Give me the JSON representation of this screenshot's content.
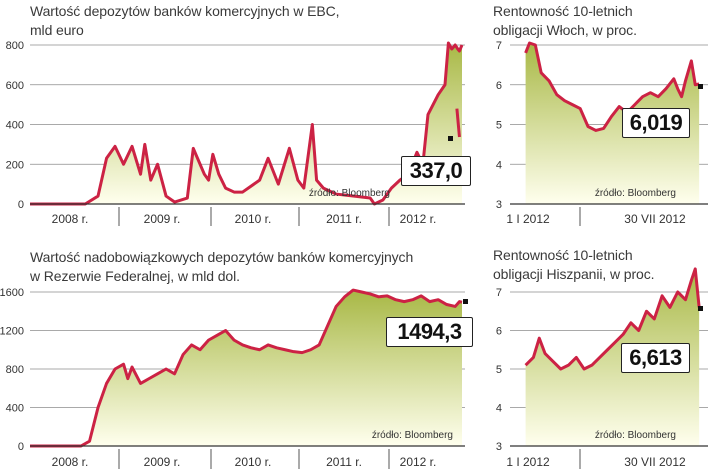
{
  "colors": {
    "line": "#cc2244",
    "fill_top": "#a8b845",
    "fill_bottom": "#ffffee",
    "grid": "#8c8c8c",
    "divider": "#555555"
  },
  "chart_data": [
    {
      "type": "area",
      "title": "Wartość depozytów banków komercyjnych w EBC, mld euro",
      "title_lines": [
        "Wartość depozytów banków komercyjnych w EBC,",
        "mld euro"
      ],
      "ylim": [
        0,
        800
      ],
      "yticks": [
        0,
        200,
        400,
        600,
        800
      ],
      "xticks": [
        "2008 r.",
        "2009 r.",
        "2010 r.",
        "2011 r.",
        "2012 r."
      ],
      "x_range": [
        2007.5,
        2012.58
      ],
      "source": "źródło: Bloomberg",
      "callout": "337,0",
      "series": [
        {
          "points": [
            [
              2007.5,
              0
            ],
            [
              2008.15,
              0
            ],
            [
              2008.3,
              40
            ],
            [
              2008.4,
              230
            ],
            [
              2008.5,
              290
            ],
            [
              2008.6,
              200
            ],
            [
              2008.7,
              290
            ],
            [
              2008.8,
              150
            ],
            [
              2008.85,
              300
            ],
            [
              2008.92,
              120
            ],
            [
              2009.0,
              200
            ],
            [
              2009.1,
              40
            ],
            [
              2009.2,
              10
            ],
            [
              2009.35,
              30
            ],
            [
              2009.42,
              280
            ],
            [
              2009.55,
              150
            ],
            [
              2009.6,
              120
            ],
            [
              2009.65,
              250
            ],
            [
              2009.72,
              150
            ],
            [
              2009.8,
              80
            ],
            [
              2009.9,
              60
            ],
            [
              2010.0,
              60
            ],
            [
              2010.2,
              120
            ],
            [
              2010.3,
              230
            ],
            [
              2010.42,
              100
            ],
            [
              2010.55,
              280
            ],
            [
              2010.65,
              120
            ],
            [
              2010.72,
              80
            ],
            [
              2010.82,
              400
            ],
            [
              2010.87,
              120
            ],
            [
              2010.95,
              80
            ],
            [
              2011.1,
              50
            ],
            [
              2011.3,
              40
            ],
            [
              2011.5,
              30
            ],
            [
              2011.55,
              0
            ],
            [
              2011.65,
              20
            ],
            [
              2011.75,
              80
            ],
            [
              2011.85,
              120
            ],
            [
              2011.95,
              150
            ],
            [
              2012.05,
              260
            ],
            [
              2012.12,
              200
            ],
            [
              2012.18,
              450
            ],
            [
              2012.3,
              550
            ],
            [
              2012.38,
              600
            ],
            [
              2012.42,
              810
            ],
            [
              2012.46,
              780
            ],
            [
              2012.5,
              800
            ],
            [
              2012.53,
              780
            ],
            [
              2012.55,
              770
            ],
            [
              2012.58,
              800
            ]
          ]
        },
        {
          "points": [
            [
              2012.52,
              480
            ],
            [
              2012.55,
              337
            ]
          ]
        }
      ]
    },
    {
      "type": "area",
      "title": "Rentowność 10-letnich obligacji Włoch, w proc.",
      "title_lines": [
        "Rentowność 10-letnich",
        "obligacji Włoch, w proc."
      ],
      "ylim": [
        3,
        7
      ],
      "yticks": [
        3,
        4,
        5,
        6,
        7
      ],
      "xticks": [
        "1 I 2012",
        "30 VII 2012"
      ],
      "x_range": [
        0,
        1
      ],
      "source": "źródło: Bloomberg",
      "callout": "6,019",
      "series": [
        {
          "points": [
            [
              0.08,
              6.8
            ],
            [
              0.1,
              7.05
            ],
            [
              0.13,
              7.0
            ],
            [
              0.16,
              6.3
            ],
            [
              0.2,
              6.1
            ],
            [
              0.24,
              5.75
            ],
            [
              0.28,
              5.6
            ],
            [
              0.32,
              5.5
            ],
            [
              0.36,
              5.4
            ],
            [
              0.4,
              4.95
            ],
            [
              0.44,
              4.85
            ],
            [
              0.48,
              4.9
            ],
            [
              0.52,
              5.2
            ],
            [
              0.56,
              5.45
            ],
            [
              0.6,
              5.3
            ],
            [
              0.64,
              5.5
            ],
            [
              0.68,
              5.7
            ],
            [
              0.72,
              5.8
            ],
            [
              0.76,
              5.7
            ],
            [
              0.8,
              5.9
            ],
            [
              0.84,
              6.15
            ],
            [
              0.86,
              5.9
            ],
            [
              0.88,
              5.7
            ],
            [
              0.9,
              6.1
            ],
            [
              0.93,
              6.6
            ],
            [
              0.95,
              6.0
            ],
            [
              0.97,
              6.019
            ]
          ]
        }
      ]
    },
    {
      "type": "area",
      "title": "Wartość nadobowiązkowych depozytów banków komercyjnych w Rezerwie Federalnej, w mld dol.",
      "title_lines": [
        "Wartość nadobowiązkowych depozytów banków komercyjnych",
        "w Rezerwie Federalnej, w mld dol."
      ],
      "ylim": [
        0,
        1600
      ],
      "yticks": [
        0,
        400,
        800,
        1200,
        1600
      ],
      "xticks": [
        "2008 r.",
        "2009 r.",
        "2010 r.",
        "2011 r.",
        "2012 r."
      ],
      "x_range": [
        2007.5,
        2012.58
      ],
      "source": "źródło: Bloomberg",
      "callout": "1494,3",
      "series": [
        {
          "points": [
            [
              2007.5,
              0
            ],
            [
              2008.1,
              0
            ],
            [
              2008.2,
              50
            ],
            [
              2008.3,
              400
            ],
            [
              2008.4,
              650
            ],
            [
              2008.5,
              800
            ],
            [
              2008.6,
              850
            ],
            [
              2008.65,
              700
            ],
            [
              2008.7,
              820
            ],
            [
              2008.8,
              650
            ],
            [
              2008.9,
              700
            ],
            [
              2009.0,
              750
            ],
            [
              2009.1,
              800
            ],
            [
              2009.2,
              750
            ],
            [
              2009.3,
              950
            ],
            [
              2009.4,
              1050
            ],
            [
              2009.5,
              1000
            ],
            [
              2009.6,
              1100
            ],
            [
              2009.7,
              1150
            ],
            [
              2009.8,
              1200
            ],
            [
              2009.85,
              1150
            ],
            [
              2009.9,
              1100
            ],
            [
              2010.0,
              1050
            ],
            [
              2010.1,
              1020
            ],
            [
              2010.2,
              1000
            ],
            [
              2010.3,
              1050
            ],
            [
              2010.4,
              1020
            ],
            [
              2010.5,
              1000
            ],
            [
              2010.6,
              980
            ],
            [
              2010.7,
              970
            ],
            [
              2010.8,
              1000
            ],
            [
              2010.9,
              1050
            ],
            [
              2011.0,
              1250
            ],
            [
              2011.1,
              1450
            ],
            [
              2011.2,
              1550
            ],
            [
              2011.3,
              1620
            ],
            [
              2011.4,
              1600
            ],
            [
              2011.5,
              1580
            ],
            [
              2011.6,
              1550
            ],
            [
              2011.7,
              1560
            ],
            [
              2011.8,
              1520
            ],
            [
              2011.9,
              1500
            ],
            [
              2012.0,
              1520
            ],
            [
              2012.1,
              1560
            ],
            [
              2012.2,
              1500
            ],
            [
              2012.3,
              1520
            ],
            [
              2012.4,
              1470
            ],
            [
              2012.5,
              1450
            ],
            [
              2012.55,
              1500
            ],
            [
              2012.58,
              1494.3
            ]
          ]
        }
      ]
    },
    {
      "type": "area",
      "title": "Rentowność 10-letnich obligacji Hiszpanii, w proc.",
      "title_lines": [
        "Rentowność 10-letnich",
        "obligacji Hiszpanii, w proc."
      ],
      "ylim": [
        3,
        7
      ],
      "yticks": [
        3,
        4,
        5,
        6,
        7
      ],
      "xticks": [
        "1 I 2012",
        "30 VII 2012"
      ],
      "x_range": [
        0,
        1
      ],
      "source": "źródło: Bloomberg",
      "callout": "6,613",
      "series": [
        {
          "points": [
            [
              0.08,
              5.1
            ],
            [
              0.12,
              5.3
            ],
            [
              0.15,
              5.8
            ],
            [
              0.18,
              5.4
            ],
            [
              0.22,
              5.2
            ],
            [
              0.26,
              5.0
            ],
            [
              0.3,
              5.1
            ],
            [
              0.34,
              5.3
            ],
            [
              0.38,
              5.0
            ],
            [
              0.42,
              5.1
            ],
            [
              0.46,
              5.3
            ],
            [
              0.5,
              5.5
            ],
            [
              0.54,
              5.7
            ],
            [
              0.58,
              5.9
            ],
            [
              0.62,
              6.2
            ],
            [
              0.66,
              6.0
            ],
            [
              0.7,
              6.5
            ],
            [
              0.74,
              6.3
            ],
            [
              0.78,
              6.9
            ],
            [
              0.82,
              6.6
            ],
            [
              0.86,
              7.0
            ],
            [
              0.9,
              6.8
            ],
            [
              0.93,
              7.3
            ],
            [
              0.95,
              7.6
            ],
            [
              0.97,
              6.6
            ]
          ]
        }
      ]
    }
  ]
}
